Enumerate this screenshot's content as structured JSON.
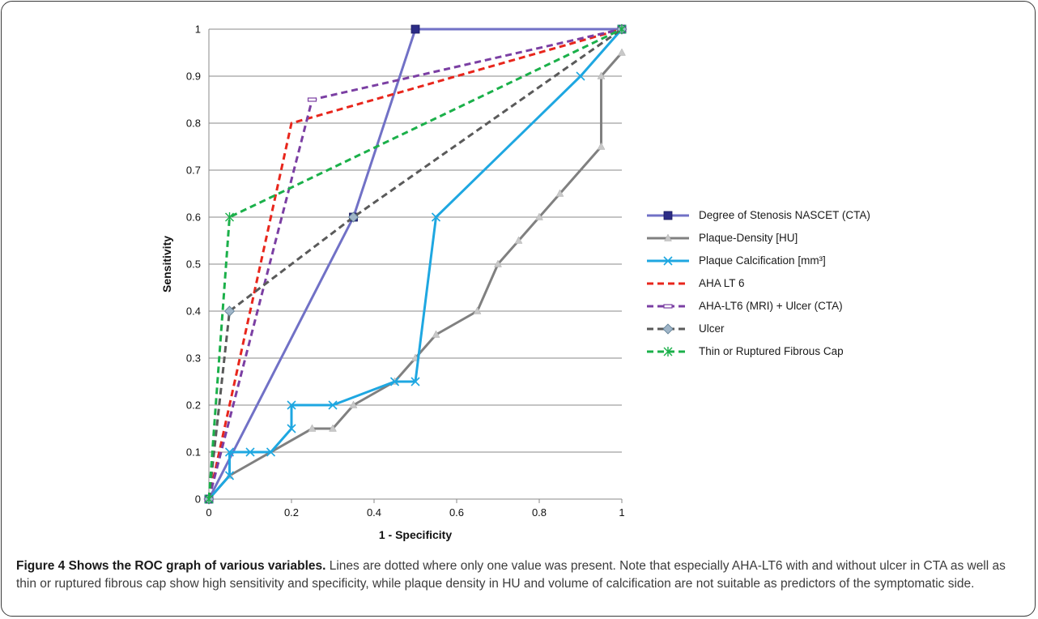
{
  "chart_data": {
    "type": "line",
    "xlabel": "1 - Specificity",
    "ylabel": "Sensitivity",
    "xlim": [
      0,
      1
    ],
    "ylim": [
      0,
      1
    ],
    "xticks": [
      "0",
      "0.2",
      "0.4",
      "0.6",
      "0.8",
      "1"
    ],
    "yticks": [
      "0",
      "0.1",
      "0.2",
      "0.3",
      "0.4",
      "0.5",
      "0.6",
      "0.7",
      "0.8",
      "0.9",
      "1"
    ],
    "grid": "horizontal",
    "legend_position": "right",
    "series": [
      {
        "name": "Degree of Stenosis NASCET (CTA)",
        "color": "#7171c6",
        "marker_color": "#2c2c86",
        "marker": "square",
        "dash": "solid",
        "x": [
          0,
          0.35,
          0.5,
          1
        ],
        "y": [
          0,
          0.6,
          1,
          1
        ]
      },
      {
        "name": "Plaque-Density [HU]",
        "color": "#808080",
        "marker_color": "#c8c8c8",
        "marker": "triangle",
        "dash": "solid",
        "x": [
          0,
          0.05,
          0.25,
          0.3,
          0.35,
          0.45,
          0.5,
          0.55,
          0.65,
          0.7,
          0.75,
          0.8,
          0.85,
          0.95,
          0.95,
          1
        ],
        "y": [
          0,
          0.05,
          0.15,
          0.15,
          0.2,
          0.25,
          0.3,
          0.35,
          0.4,
          0.5,
          0.55,
          0.6,
          0.65,
          0.75,
          0.9,
          0.95
        ]
      },
      {
        "name": "Plaque Calcification [mm³]",
        "color": "#1ea7e1",
        "marker_color": "#1ea7e1",
        "marker": "x",
        "dash": "solid",
        "x": [
          0,
          0.05,
          0.05,
          0.1,
          0.15,
          0.2,
          0.2,
          0.3,
          0.45,
          0.5,
          0.55,
          0.9,
          1
        ],
        "y": [
          0,
          0.05,
          0.1,
          0.1,
          0.1,
          0.15,
          0.2,
          0.2,
          0.25,
          0.25,
          0.6,
          0.9,
          1
        ]
      },
      {
        "name": "AHA LT 6",
        "color": "#e8261c",
        "marker_color": "#e8261c",
        "marker": "none",
        "dash": "dashed",
        "x": [
          0,
          0.2,
          1
        ],
        "y": [
          0,
          0.8,
          1
        ]
      },
      {
        "name": "AHA-LT6 (MRI) + Ulcer (CTA)",
        "color": "#7b3fa3",
        "marker_color": "#7b3fa3",
        "marker": "dash",
        "dash": "dashed",
        "x": [
          0,
          0.25,
          1
        ],
        "y": [
          0,
          0.85,
          1
        ]
      },
      {
        "name": "Ulcer",
        "color": "#5a5a5a",
        "marker_color": "#9fb5c8",
        "marker": "diamond",
        "dash": "dashed",
        "x": [
          0,
          0.05,
          0.35,
          1
        ],
        "y": [
          0,
          0.4,
          0.6,
          1
        ]
      },
      {
        "name": "Thin or Ruptured Fibrous Cap",
        "color": "#1bb04a",
        "marker_color": "#1bb04a",
        "marker": "star",
        "dash": "dashed",
        "x": [
          0,
          0.05,
          1
        ],
        "y": [
          0,
          0.6,
          1
        ]
      }
    ]
  },
  "caption": {
    "bold": "Figure 4 Shows the ROC graph of various variables.",
    "text": " Lines are dotted where only one value was present. Note that especially AHA-LT6 with and without ulcer in CTA as well as thin or ruptured fibrous cap show high sensitivity and specificity, while plaque density in HU and volume of calcification are not suitable as predictors of the symptomatic side."
  }
}
